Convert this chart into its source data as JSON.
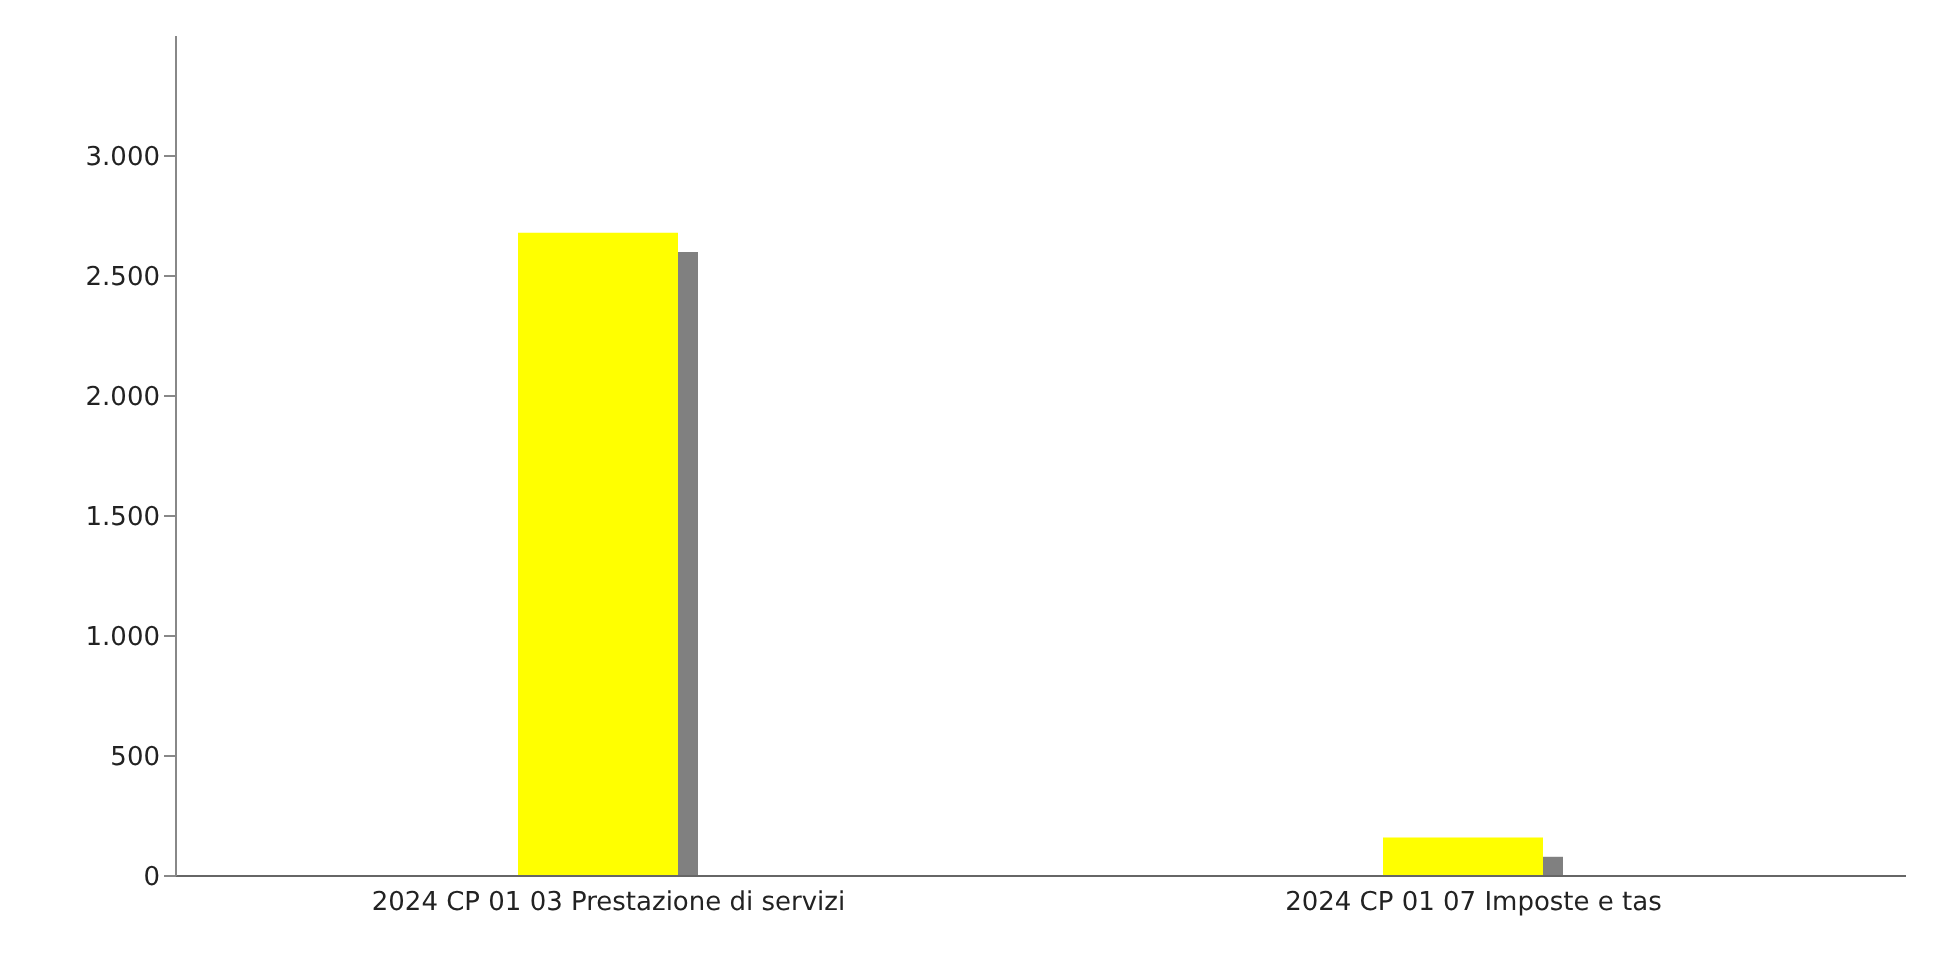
{
  "chart_data": {
    "type": "bar",
    "categories": [
      "2024 CP 01 03 Prestazione di servizi",
      "2024 CP 01 07 Imposte e tas"
    ],
    "series": [
      {
        "color": "#ffff00",
        "values": [
          2680,
          160
        ]
      },
      {
        "color": "#808080",
        "values": [
          2600,
          80
        ]
      }
    ],
    "ylim": [
      0,
      3500
    ],
    "yticks": [
      {
        "value": 0,
        "label": "0"
      },
      {
        "value": 500,
        "label": "500"
      },
      {
        "value": 1000,
        "label": "1.000"
      },
      {
        "value": 1500,
        "label": "1.500"
      },
      {
        "value": 2000,
        "label": "2.000"
      },
      {
        "value": 2500,
        "label": "2.500"
      },
      {
        "value": 3000,
        "label": "3.000"
      }
    ],
    "grid": false
  }
}
